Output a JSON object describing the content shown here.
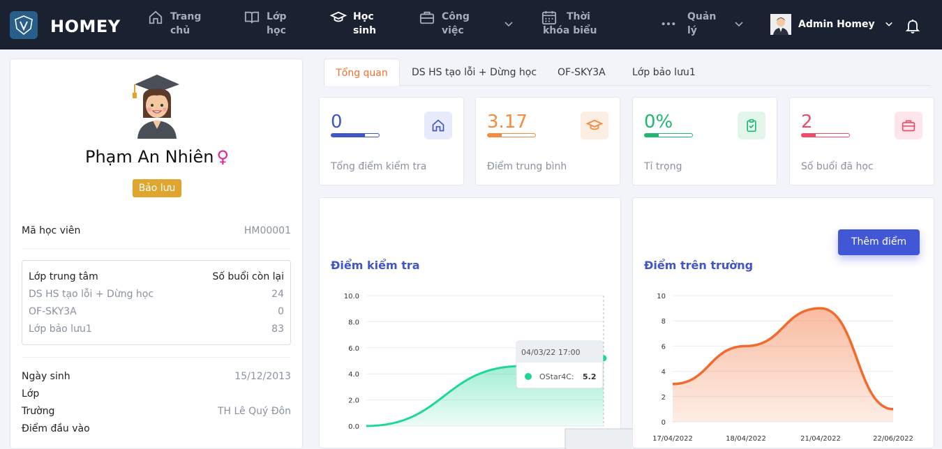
{
  "app": {
    "brand": "HOMEY"
  },
  "nav": {
    "items": [
      {
        "label": "Trang chủ",
        "icon": "home-icon"
      },
      {
        "label": "Lớp học",
        "icon": "book-icon"
      },
      {
        "label": "Học sinh",
        "icon": "graduation-cap-icon",
        "active": true
      },
      {
        "label": "Công việc",
        "icon": "briefcase-icon"
      },
      {
        "label": "Thời khóa biểu",
        "icon": "calendar-icon"
      },
      {
        "label": "Quản lý",
        "icon": "more-dots-icon"
      }
    ],
    "user_name": "Admin Homey"
  },
  "profile": {
    "name": "Phạm An Nhiên",
    "gender_symbol": "♀",
    "status_badge": "Bảo lưu",
    "student_code_label": "Mã học viên",
    "student_code": "HM00001",
    "class_table": {
      "header_left": "Lớp trung tâm",
      "header_right": "Số buổi còn lại",
      "rows": [
        {
          "name": "DS HS tạo lỗi + Dừng học",
          "remaining": "24"
        },
        {
          "name": "OF-SKY3A",
          "remaining": "0"
        },
        {
          "name": "Lớp bảo lưu1",
          "remaining": "83"
        }
      ]
    },
    "birthday_label": "Ngày sinh",
    "birthday": "15/12/2013",
    "class_label": "Lớp",
    "school_label": "Trường",
    "school": "TH Lê Quý Đôn",
    "entry_score_label": "Điểm đầu vào"
  },
  "tabs": [
    "Tổng quan",
    "DS HS tạo lỗi + Dừng học",
    "OF-SKY3A",
    "Lớp bảo lưu1"
  ],
  "stats": [
    {
      "value": "0",
      "label": "Tổng điểm kiểm tra",
      "color": "#3f55c8",
      "bg": "#e8ebfb",
      "fill": 0.7,
      "icon": "home-icon"
    },
    {
      "value": "3.17",
      "label": "Điểm trung bình",
      "color": "#f58b3c",
      "bg": "#fdeee3",
      "fill": 0.3,
      "icon": "graduation-cap-icon"
    },
    {
      "value": "0%",
      "label": "Tỉ trọng",
      "color": "#1fb86e",
      "bg": "#e3f6ec",
      "fill": 0.3,
      "icon": "clipboard-check-icon"
    },
    {
      "value": "2",
      "label": "Số buổi đã học",
      "color": "#ef4b6b",
      "bg": "#fde6eb",
      "fill": 0.3,
      "icon": "briefcase-icon"
    }
  ],
  "panels": {
    "test_title": "Điểm kiểm tra",
    "school_title": "Điểm trên trường",
    "add_button": "Thêm điểm"
  },
  "chart_data": [
    {
      "type": "area",
      "title": "Điểm kiểm tra",
      "ylim": [
        0,
        10
      ],
      "y_ticks": [
        "0.0",
        "2.0",
        "4.0",
        "6.0",
        "8.0",
        "10.0"
      ],
      "series": [
        {
          "name": "OStar4C",
          "values": [
            0,
            4.6,
            5.2
          ],
          "color": "#1ed59a"
        }
      ],
      "tooltip": {
        "date": "04/03/22 17:00",
        "series": "OStar4C:",
        "value": "5.2"
      },
      "grid": true
    },
    {
      "type": "area",
      "title": "Điểm trên trường",
      "ylim": [
        0,
        10
      ],
      "y_ticks": [
        "0",
        "2",
        "4",
        "6",
        "8",
        "10"
      ],
      "x_ticks": [
        "17/04/2022",
        "18/04/2022",
        "21/04/2022",
        "22/06/2022"
      ],
      "series": [
        {
          "values": [
            3,
            6,
            9,
            1
          ],
          "color": "#f26a2c"
        }
      ],
      "grid": true
    }
  ]
}
